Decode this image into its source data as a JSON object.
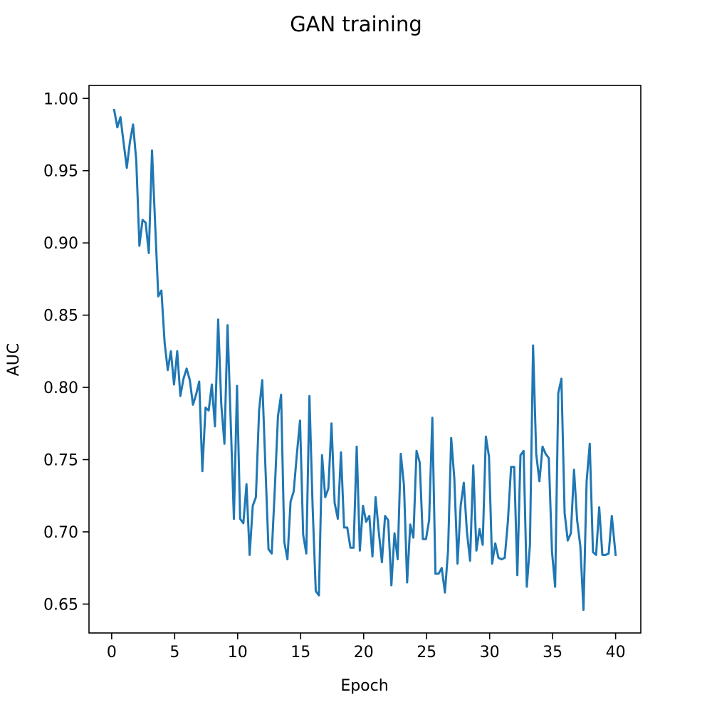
{
  "chart_data": {
    "type": "line",
    "title": "GAN training",
    "xlabel": "Epoch",
    "ylabel": "AUC",
    "xlim": [
      -1.8,
      42.0
    ],
    "ylim": [
      0.63,
      1.009
    ],
    "xticks": [
      0,
      5,
      10,
      15,
      20,
      25,
      30,
      35,
      40
    ],
    "xtick_labels": [
      "0",
      "5",
      "10",
      "15",
      "20",
      "25",
      "30",
      "35",
      "40"
    ],
    "yticks": [
      0.65,
      0.7,
      0.75,
      0.8,
      0.85,
      0.9,
      0.95,
      1.0
    ],
    "ytick_labels": [
      "0.65",
      "0.70",
      "0.75",
      "0.80",
      "0.85",
      "0.90",
      "0.95",
      "1.00"
    ],
    "grid": false,
    "color": "#1f77b4",
    "series": [
      {
        "x": [
          0.2,
          0.45,
          0.7,
          0.95,
          1.2,
          1.45,
          1.7,
          1.95,
          2.2,
          2.45,
          2.7,
          2.95,
          3.2,
          3.45,
          3.7,
          3.95,
          4.2,
          4.45,
          4.7,
          4.95,
          5.2,
          5.45,
          5.7,
          5.95,
          6.2,
          6.45,
          6.7,
          6.95,
          7.2,
          7.45,
          7.7,
          7.95,
          8.2,
          8.45,
          8.7,
          8.95,
          9.2,
          9.45,
          9.7,
          9.95,
          10.2,
          10.45,
          10.7,
          10.95,
          11.2,
          11.45,
          11.7,
          11.95,
          12.2,
          12.45,
          12.7,
          12.95,
          13.2,
          13.45,
          13.7,
          13.95,
          14.2,
          14.45,
          14.7,
          14.95,
          15.2,
          15.45,
          15.7,
          15.95,
          16.2,
          16.45,
          16.7,
          16.95,
          17.2,
          17.45,
          17.7,
          17.95,
          18.2,
          18.45,
          18.7,
          18.95,
          19.2,
          19.45,
          19.7,
          19.95,
          20.2,
          20.45,
          20.7,
          20.95,
          21.2,
          21.45,
          21.7,
          21.95,
          22.2,
          22.45,
          22.7,
          22.95,
          23.2,
          23.45,
          23.7,
          23.95,
          24.2,
          24.45,
          24.7,
          24.95,
          25.2,
          25.45,
          25.7,
          25.95,
          26.2,
          26.45,
          26.7,
          26.95,
          27.2,
          27.45,
          27.7,
          27.95,
          28.2,
          28.45,
          28.7,
          28.95,
          29.2,
          29.45,
          29.7,
          29.95,
          30.2,
          30.45,
          30.7,
          30.95,
          31.2,
          31.45,
          31.7,
          31.95,
          32.2,
          32.45,
          32.7,
          32.95,
          33.2,
          33.45,
          33.7,
          33.95,
          34.2,
          34.45,
          34.7,
          34.95,
          35.2,
          35.45,
          35.7,
          35.95,
          36.2,
          36.45,
          36.7,
          36.95,
          37.2,
          37.45,
          37.7,
          37.95,
          38.2,
          38.45,
          38.7,
          38.95,
          39.2,
          39.45,
          39.7,
          40.0
        ],
        "y": [
          0.992,
          0.98,
          0.987,
          0.969,
          0.952,
          0.97,
          0.982,
          0.957,
          0.898,
          0.916,
          0.914,
          0.893,
          0.964,
          0.913,
          0.863,
          0.867,
          0.831,
          0.812,
          0.825,
          0.802,
          0.825,
          0.794,
          0.806,
          0.813,
          0.805,
          0.788,
          0.795,
          0.804,
          0.742,
          0.786,
          0.784,
          0.802,
          0.773,
          0.847,
          0.788,
          0.761,
          0.843,
          0.775,
          0.709,
          0.801,
          0.709,
          0.706,
          0.733,
          0.684,
          0.718,
          0.724,
          0.784,
          0.805,
          0.746,
          0.688,
          0.685,
          0.73,
          0.78,
          0.795,
          0.693,
          0.681,
          0.721,
          0.728,
          0.754,
          0.777,
          0.698,
          0.685,
          0.794,
          0.717,
          0.659,
          0.656,
          0.753,
          0.724,
          0.73,
          0.775,
          0.72,
          0.709,
          0.755,
          0.703,
          0.703,
          0.689,
          0.689,
          0.759,
          0.687,
          0.718,
          0.707,
          0.711,
          0.683,
          0.724,
          0.7,
          0.679,
          0.711,
          0.708,
          0.663,
          0.699,
          0.681,
          0.754,
          0.732,
          0.665,
          0.705,
          0.696,
          0.756,
          0.748,
          0.695,
          0.695,
          0.708,
          0.779,
          0.671,
          0.671,
          0.675,
          0.658,
          0.687,
          0.765,
          0.737,
          0.678,
          0.718,
          0.734,
          0.7,
          0.68,
          0.746,
          0.687,
          0.702,
          0.691,
          0.766,
          0.752,
          0.678,
          0.692,
          0.682,
          0.681,
          0.682,
          0.707,
          0.745,
          0.745,
          0.67,
          0.753,
          0.756,
          0.662,
          0.691,
          0.829,
          0.754,
          0.735,
          0.759,
          0.754,
          0.751,
          0.686,
          0.662,
          0.796,
          0.806,
          0.713,
          0.694,
          0.699,
          0.743,
          0.708,
          0.69,
          0.646,
          0.735,
          0.761,
          0.686,
          0.684,
          0.717,
          0.684,
          0.684,
          0.685,
          0.711,
          0.684
        ]
      }
    ]
  }
}
